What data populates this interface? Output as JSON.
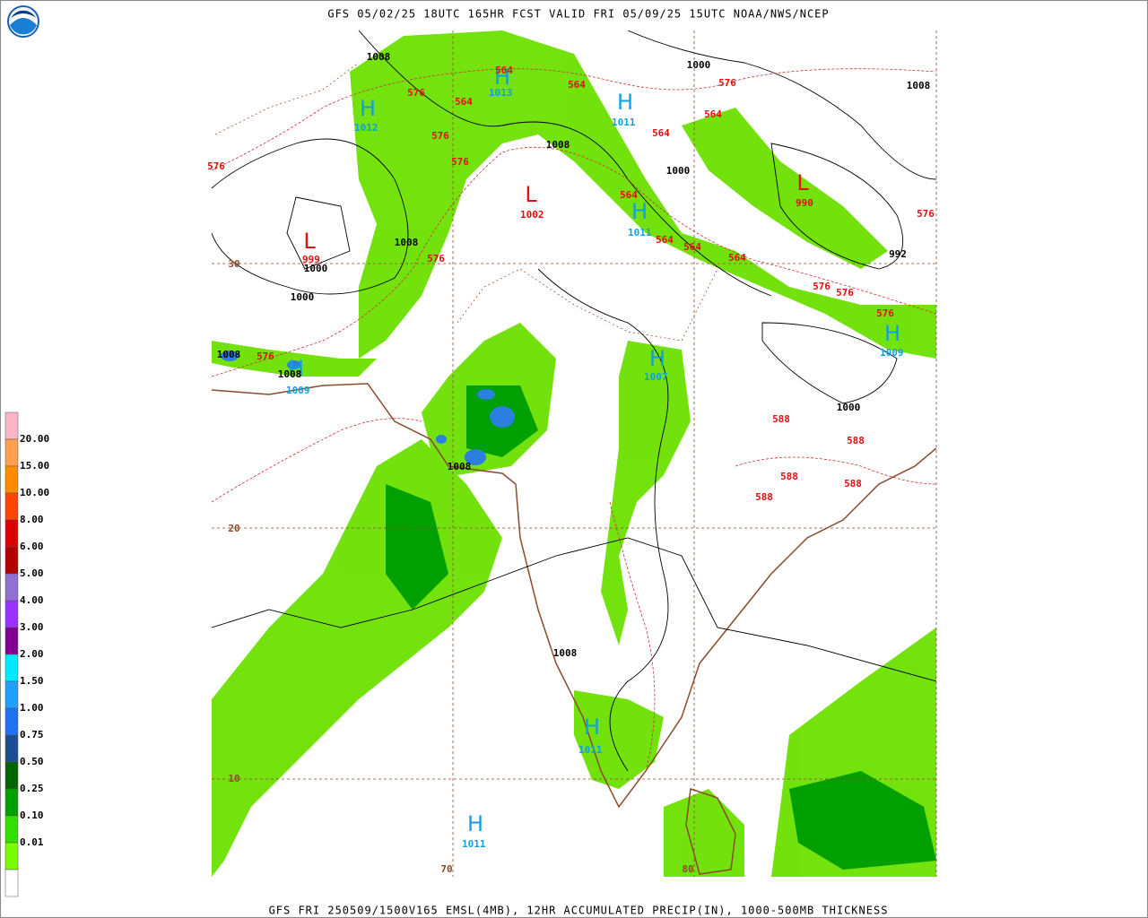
{
  "header": {
    "title": "GFS 05/02/25 18UTC 165HR FCST VALID FRI 05/09/25 15UTC NOAA/NWS/NCEP"
  },
  "footer": {
    "caption": "GFS FRI 250509/1500V165 EMSL(4MB), 12HR ACCUMULATED PRECIP(IN), 1000-500MB THICKNESS"
  },
  "legend": {
    "labels": [
      "20.00",
      "15.00",
      "10.00",
      "8.00",
      "6.00",
      "5.00",
      "4.00",
      "3.00",
      "2.00",
      "1.50",
      "1.00",
      "0.75",
      "0.50",
      "0.25",
      "0.10",
      "0.01"
    ],
    "colors": [
      "#ffb4c8",
      "#ffa050",
      "#ff8c00",
      "#ff4500",
      "#dc0000",
      "#b40000",
      "#9070d0",
      "#9a32ff",
      "#800090",
      "#00eaff",
      "#1fa0ff",
      "#2070f0",
      "#1a4e90",
      "#006400",
      "#00a000",
      "#30e000",
      "#7cfc00",
      "#ffffff"
    ]
  },
  "centers": [
    {
      "letter": "H",
      "value": "1012"
    },
    {
      "letter": "H",
      "value": "1013"
    },
    {
      "letter": "H",
      "value": "1011"
    },
    {
      "letter": "L",
      "value": "1002"
    },
    {
      "letter": "H",
      "value": "1011"
    },
    {
      "letter": "L",
      "value": "990"
    },
    {
      "letter": "L",
      "value": "999"
    },
    {
      "letter": "H",
      "value": "1009"
    },
    {
      "letter": "H",
      "value": "1007"
    },
    {
      "letter": "H",
      "value": "1009"
    },
    {
      "letter": "H",
      "value": "1011"
    },
    {
      "letter": "H",
      "value": "1011"
    }
  ],
  "isobar_labels": [
    "1008",
    "1000",
    "1008",
    "1008",
    "1000",
    "1008",
    "1000",
    "1000",
    "992",
    "1008",
    "1008",
    "1000",
    "1008",
    "1008"
  ],
  "thickness_labels": [
    "564",
    "576",
    "564",
    "576",
    "564",
    "564",
    "576",
    "564",
    "576",
    "564",
    "576",
    "564",
    "564",
    "576",
    "564",
    "576",
    "576",
    "576",
    "576",
    "588",
    "588",
    "588",
    "588",
    "588",
    "576"
  ],
  "grid_labels": [
    "30",
    "20",
    "10",
    "70",
    "80"
  ]
}
